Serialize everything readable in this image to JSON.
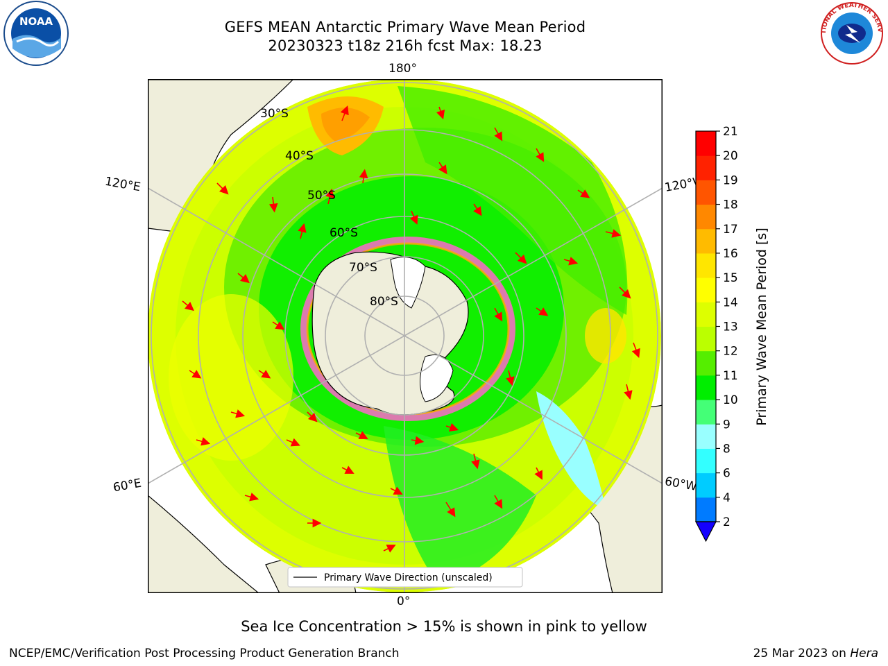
{
  "title": {
    "line1": "GEFS MEAN Antarctic Primary Wave Mean Period",
    "line2": "20230323 t18z 216h fcst   Max: 18.23"
  },
  "logos": {
    "left": "noaa-logo",
    "right": "nws-logo",
    "left_text": "NOAA",
    "right_text": "NATIONAL WEATHER SERVICE"
  },
  "map": {
    "projection": "south-polar-stereographic",
    "lon_labels": {
      "top": "180°",
      "bottom": "0°",
      "left_upper": "120°E",
      "left_lower": "60°E",
      "right_upper": "120°W",
      "right_lower": "60°W"
    },
    "lat_labels": [
      "30°S",
      "40°S",
      "50°S",
      "60°S",
      "70°S",
      "80°S"
    ],
    "legend": "Primary Wave Direction (unscaled)"
  },
  "colorbar": {
    "label": "Primary Wave Mean Period [s]",
    "ticks": [
      "2",
      "4",
      "6",
      "8",
      "9",
      "10",
      "11",
      "12",
      "13",
      "14",
      "15",
      "16",
      "17",
      "18",
      "19",
      "20",
      "21"
    ],
    "colors": [
      "#0044ff",
      "#007bff",
      "#00ccff",
      "#33ffff",
      "#99ffff",
      "#44ff77",
      "#00ee00",
      "#55ee00",
      "#bbff00",
      "#ddff00",
      "#ffff00",
      "#ffe600",
      "#ffbb00",
      "#ff8800",
      "#ff5500",
      "#ff2200",
      "#ff0000"
    ],
    "extend_color": "#1400ff"
  },
  "notes": {
    "ice": "Sea Ice Concentration > 15% is shown in pink to yellow"
  },
  "footer": {
    "left": "NCEP/EMC/Verification Post Processing Product Generation Branch",
    "date": "25 Mar 2023 on ",
    "host": "Hera"
  }
}
